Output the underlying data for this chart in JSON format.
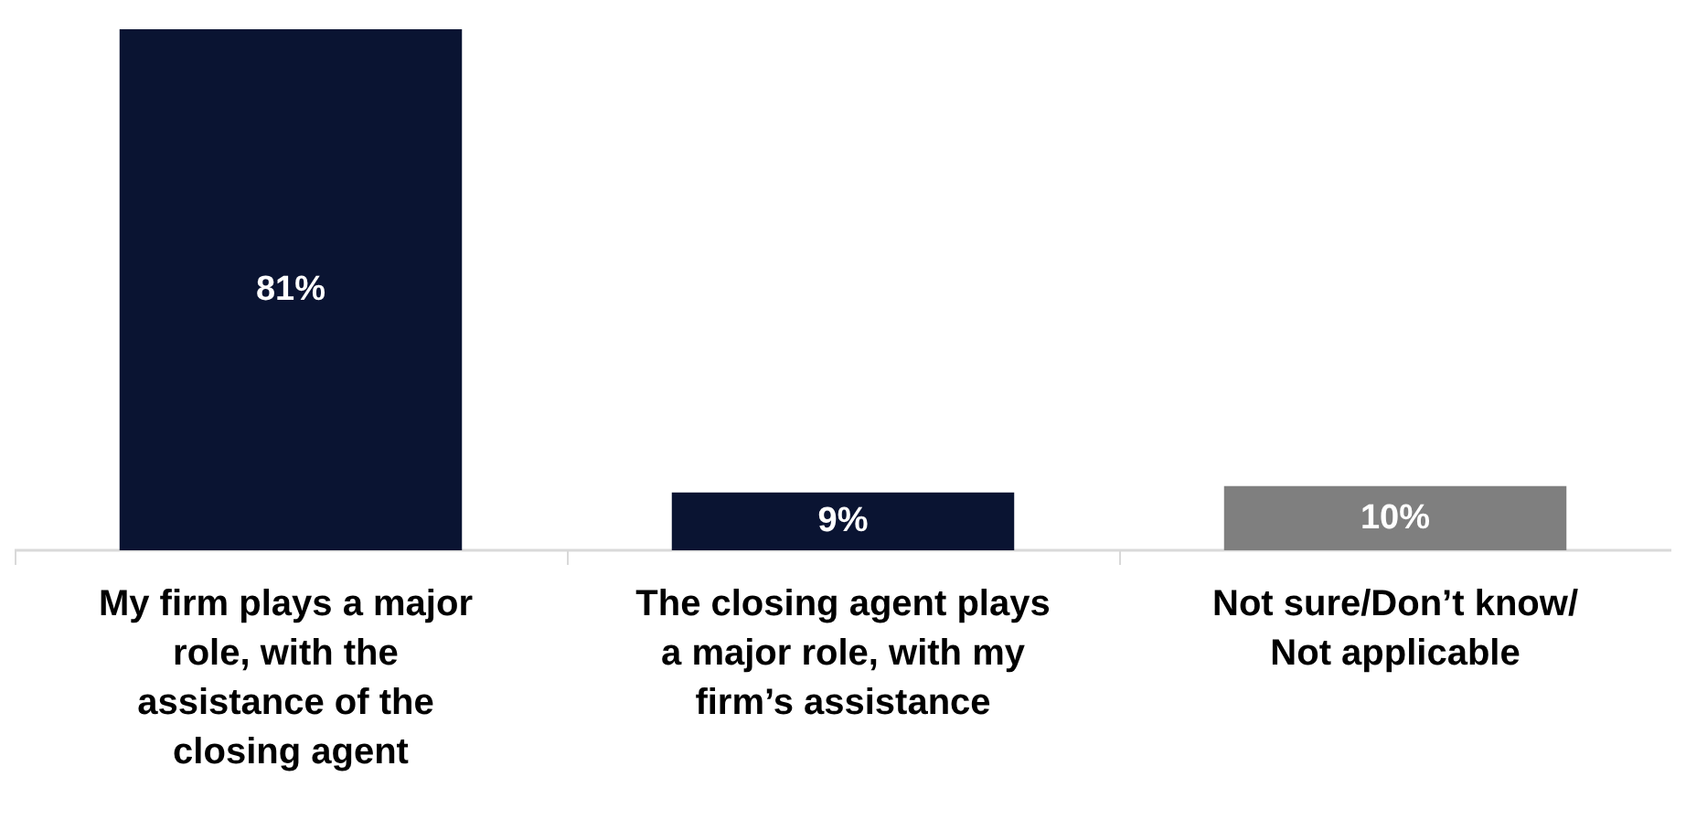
{
  "chart_data": {
    "type": "bar",
    "categories": [
      "My firm plays a major role, with the assistance of the closing agent",
      "The closing agent plays a major role, with my firm’s assistance",
      "Not sure/Don’t know/Not applicable"
    ],
    "values": [
      81,
      9,
      10
    ],
    "colors": [
      "#0a1432",
      "#0a1432",
      "#7f7f7f"
    ],
    "value_labels": [
      "81%",
      "9%",
      "10%"
    ],
    "tick_labels": "x"
  }
}
